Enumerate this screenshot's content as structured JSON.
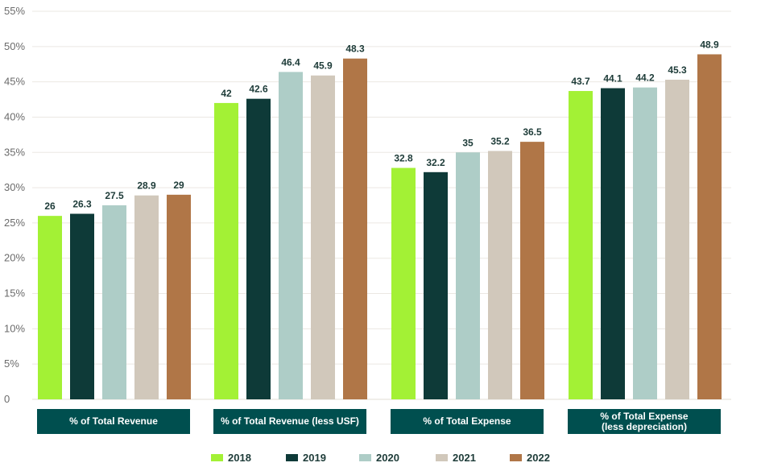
{
  "chart_data": {
    "type": "bar",
    "categories": [
      "% of Total Revenue",
      "% of Total Revenue (less USF)",
      "% of Total Expense",
      "% of Total Expense\n(less depreciation)"
    ],
    "series": [
      {
        "name": "2018",
        "color": "#a3f135",
        "values": [
          26,
          42,
          32.8,
          43.7
        ]
      },
      {
        "name": "2019",
        "color": "#0e3a38",
        "values": [
          26.3,
          42.6,
          32.2,
          44.1
        ]
      },
      {
        "name": "2020",
        "color": "#aecdc7",
        "values": [
          27.5,
          46.4,
          35,
          44.2
        ]
      },
      {
        "name": "2021",
        "color": "#d1c8bb",
        "values": [
          28.9,
          45.9,
          35.2,
          45.3
        ]
      },
      {
        "name": "2022",
        "color": "#b07647",
        "values": [
          29,
          48.3,
          36.5,
          48.9
        ]
      }
    ],
    "yticks": [
      "0",
      "5%",
      "10%",
      "15%",
      "20%",
      "25%",
      "30%",
      "35%",
      "40%",
      "45%",
      "50%",
      "55%"
    ],
    "ylim": [
      0,
      55
    ],
    "grid": true,
    "legend": "bottom",
    "category_box_color": "#004f4f"
  }
}
